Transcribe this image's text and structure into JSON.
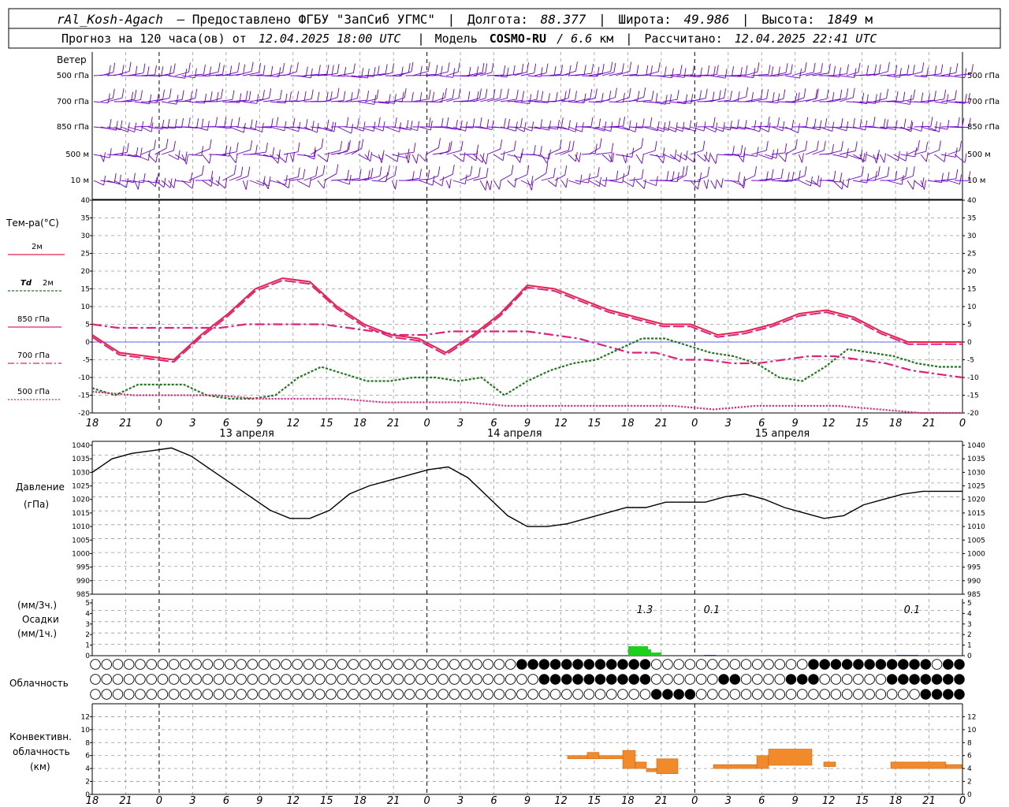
{
  "header": {
    "line1": {
      "station": "rAl_Kosh-Agach",
      "provider": "– Предоставлено ФГБУ \"ЗапСиб УГМС\"",
      "lon_label": "Долгота:",
      "lon": "88.377",
      "lat_label": "Широта:",
      "lat": "49.986",
      "alt_label": "Высота:",
      "alt": "1849",
      "alt_unit": "м"
    },
    "line2": {
      "prefix": "Прогноз на 120 часа(ов) от",
      "issued": "12.04.2025 18:00 UTC",
      "model_label": "Модель",
      "model": "COSMO-RU",
      "res": "/ 6.6",
      "res_unit": "км",
      "calc_label": "Рассчитано:",
      "calc": "12.04.2025 22:41 UTC"
    }
  },
  "wind_panel": {
    "title": "Ветер",
    "levels": [
      "500 гПа",
      "700 гПа",
      "850 гПа",
      "500 м",
      "10 м"
    ],
    "color": "#6a00c8"
  },
  "temp_panel": {
    "title": "Тем-ра(°C)",
    "legend": [
      {
        "key": "t2m",
        "label": "2м",
        "color": "#e8204a"
      },
      {
        "key": "td2m",
        "label_a": "Td",
        "label_b": "2м",
        "color": "#1f7a1f"
      },
      {
        "key": "t850",
        "label": "850 гПа",
        "color": "#e0207a"
      },
      {
        "key": "t700",
        "label": "700 гПа",
        "color": "#e0207a"
      },
      {
        "key": "t500",
        "label": "500 гПа",
        "color": "#e0207a"
      }
    ]
  },
  "pressure_panel": {
    "label_a": "Давление",
    "label_b": "(гПа)"
  },
  "precip_panel": {
    "label_a": "(мм/3ч.)",
    "label_b": "Осадки",
    "label_c": "(мм/1ч.)"
  },
  "cloud_panel": {
    "label": "Облачность"
  },
  "conv_panel": {
    "label_a": "Конвективн.",
    "label_b": "облачность",
    "label_c": "(км)"
  },
  "chart_data": {
    "type": "line",
    "x_hours_labels": [
      "18",
      "21",
      "0",
      "3",
      "6",
      "9",
      "12",
      "15",
      "18",
      "21",
      "0",
      "3",
      "6",
      "9",
      "12",
      "15",
      "18",
      "21",
      "0",
      "3",
      "6",
      "9",
      "12",
      "15",
      "18",
      "21",
      "0"
    ],
    "dates": [
      "13 апреля",
      "14 апреля",
      "15 апреля"
    ],
    "temperature": {
      "ylim": [
        -20,
        40
      ],
      "yticks": [
        40,
        35,
        30,
        25,
        20,
        15,
        10,
        5,
        0,
        -5,
        -10,
        -15,
        -20
      ],
      "t2m": [
        2,
        -3,
        -4,
        -5,
        2,
        8,
        15,
        18,
        17,
        10,
        5,
        2,
        1,
        -3,
        2,
        8,
        16,
        15,
        12,
        9,
        7,
        5,
        5,
        2,
        3,
        5,
        8,
        9,
        7,
        3,
        0,
        0,
        0
      ],
      "td2m": [
        -13,
        -15,
        -12,
        -12,
        -12,
        -15,
        -16,
        -16,
        -15,
        -10,
        -7,
        -9,
        -11,
        -11,
        -10,
        -10,
        -11,
        -10,
        -15,
        -11,
        -8,
        -6,
        -5,
        -2,
        1,
        1,
        -1,
        -3,
        -4,
        -6,
        -10,
        -11,
        -7,
        -2,
        -3,
        -4,
        -6,
        -7,
        -7
      ],
      "t850": [
        5,
        4,
        4,
        4,
        4,
        4,
        5,
        5,
        5,
        5,
        4,
        3,
        2,
        2,
        3,
        3,
        3,
        3,
        2,
        1,
        -1,
        -3,
        -3,
        -5,
        -5,
        -6,
        -6,
        -5,
        -4,
        -4,
        -5,
        -6,
        -8,
        -9,
        -10
      ],
      "t500": [
        -14,
        -15,
        -15,
        -15,
        -16,
        -16,
        -16,
        -17,
        -17,
        -17,
        -18,
        -18,
        -18,
        -18,
        -18,
        -19,
        -18,
        -18,
        -18,
        -19,
        -20,
        -20
      ]
    },
    "pressure": {
      "ylim": [
        985,
        1040
      ],
      "yticks": [
        1040,
        1035,
        1030,
        1025,
        1020,
        1015,
        1010,
        1005,
        1000,
        995,
        990,
        985
      ],
      "values": [
        1030,
        1035,
        1037,
        1038,
        1039,
        1036,
        1031,
        1026,
        1021,
        1016,
        1013,
        1013,
        1016,
        1022,
        1025,
        1027,
        1029,
        1031,
        1032,
        1028,
        1021,
        1014,
        1010,
        1010,
        1011,
        1013,
        1015,
        1017,
        1017,
        1019,
        1019,
        1019,
        1021,
        1022,
        1020,
        1017,
        1015,
        1013,
        1014,
        1018,
        1020,
        1022,
        1023,
        1023,
        1023
      ]
    },
    "precip": {
      "ylim": [
        0,
        5
      ],
      "yticks": [
        5,
        4,
        3,
        2,
        1,
        0
      ],
      "labels": [
        "1.3",
        "0.1",
        "0.1"
      ]
    },
    "convective": {
      "ylim": [
        0,
        12
      ],
      "yticks": [
        12,
        10,
        8,
        6,
        4,
        2,
        0
      ]
    }
  }
}
